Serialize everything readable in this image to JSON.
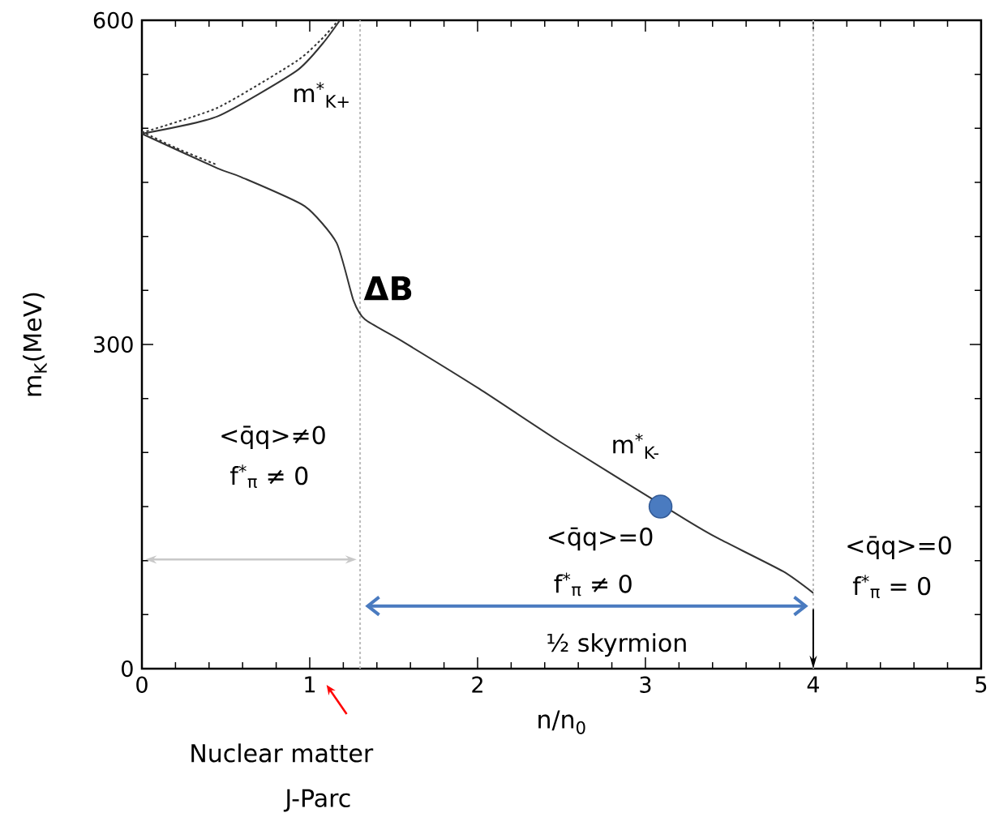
{
  "chart_data": {
    "type": "line",
    "xlabel": "n/n$_{0}$",
    "ylabel": "m$_{K}$(MeV)",
    "xlim": [
      0,
      5
    ],
    "ylim": [
      0,
      600
    ],
    "xticks": [
      0,
      1,
      2,
      3,
      4,
      5
    ],
    "yticks": [
      0,
      300,
      600
    ],
    "marker": "none",
    "series": [
      {
        "color": "#333333",
        "line_style": "solid",
        "x": [
          0,
          0.45,
          0.92,
          1.08,
          1.18
        ],
        "values": [
          495,
          511,
          553,
          579,
          600
        ]
      },
      {
        "color": "#333333",
        "line_style": "dashed",
        "x": [
          0,
          0.45,
          0.92,
          1.08,
          1.17
        ],
        "values": [
          496,
          519,
          562,
          584,
          600
        ]
      },
      {
        "color": "#333333",
        "line_style": "solid",
        "x": [
          0,
          0.45,
          0.59,
          0.97,
          1.16,
          1.26,
          1.33,
          1.54,
          2.01,
          2.49,
          3.25,
          3.44,
          3.82,
          4.0
        ],
        "values": [
          495,
          463,
          455,
          428,
          394,
          341,
          323,
          304,
          259,
          210,
          137,
          120,
          90,
          70
        ]
      },
      {
        "color": "#333333",
        "line_style": "dashed",
        "x": [
          0,
          0.2,
          0.45
        ],
        "values": [
          497,
          482,
          466
        ]
      },
      {
        "type": "scatter",
        "marker": "circle",
        "color": "#4a7bc0",
        "x": [
          3.09
        ],
        "values": [
          150
        ]
      }
    ],
    "ref_lines": [
      {
        "axis": "x",
        "value": 1.3,
        "color": "#bbbbbb",
        "line_style": "dashed"
      },
      {
        "axis": "x",
        "value": 4,
        "color": "#bbbbbb",
        "line_style": "dashed"
      }
    ],
    "annotations": [
      "m$^{*}$$_{K+}$",
      "ΔB",
      "m$^{*}$$_{K-}$",
      "<q̄q>≠0",
      "f$^{*}$$_{π}$ ≠ 0",
      "<q̄q>=0",
      "f$^{*}$$_{π}$ ≠ 0",
      "<q̄q>=0",
      "f$^{*}$$_{π}$ = 0",
      "½ skyrmion",
      "Nuclear matter",
      "J-Parc"
    ]
  }
}
